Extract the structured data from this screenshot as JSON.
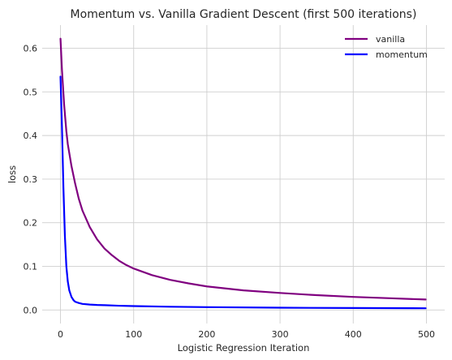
{
  "chart_data": {
    "type": "line",
    "title": "Momentum vs. Vanilla Gradient Descent (first 500 iterations)",
    "xlabel": "Logistic Regression Iteration",
    "ylabel": "loss",
    "xlim": [
      -25,
      525
    ],
    "ylim": [
      -0.031,
      0.653
    ],
    "xticks": [
      0,
      100,
      200,
      300,
      400,
      500
    ],
    "yticks": [
      0.0,
      0.1,
      0.2,
      0.3,
      0.4,
      0.5,
      0.6
    ],
    "xtick_labels": [
      "0",
      "100",
      "200",
      "300",
      "400",
      "500"
    ],
    "ytick_labels": [
      "0.0",
      "0.1",
      "0.2",
      "0.3",
      "0.4",
      "0.5",
      "0.6"
    ],
    "grid": true,
    "legend_position": "upper right",
    "series": [
      {
        "name": "vanilla",
        "color": "#800080",
        "x": [
          0,
          2,
          5,
          8,
          10,
          15,
          20,
          25,
          30,
          40,
          50,
          60,
          70,
          80,
          90,
          100,
          125,
          150,
          175,
          200,
          250,
          300,
          350,
          400,
          450,
          499
        ],
        "y": [
          0.622,
          0.55,
          0.47,
          0.41,
          0.38,
          0.33,
          0.29,
          0.255,
          0.228,
          0.19,
          0.162,
          0.141,
          0.126,
          0.113,
          0.103,
          0.095,
          0.08,
          0.069,
          0.061,
          0.054,
          0.045,
          0.039,
          0.034,
          0.03,
          0.027,
          0.024
        ]
      },
      {
        "name": "momentum",
        "color": "#0000ff",
        "x": [
          0,
          2,
          4,
          6,
          8,
          10,
          12,
          15,
          18,
          20,
          25,
          30,
          40,
          50,
          60,
          80,
          100,
          150,
          200,
          300,
          400,
          499
        ],
        "y": [
          0.535,
          0.42,
          0.28,
          0.17,
          0.1,
          0.065,
          0.045,
          0.03,
          0.022,
          0.019,
          0.016,
          0.014,
          0.0125,
          0.0115,
          0.011,
          0.0098,
          0.009,
          0.0075,
          0.0065,
          0.0052,
          0.0045,
          0.004
        ]
      }
    ]
  }
}
